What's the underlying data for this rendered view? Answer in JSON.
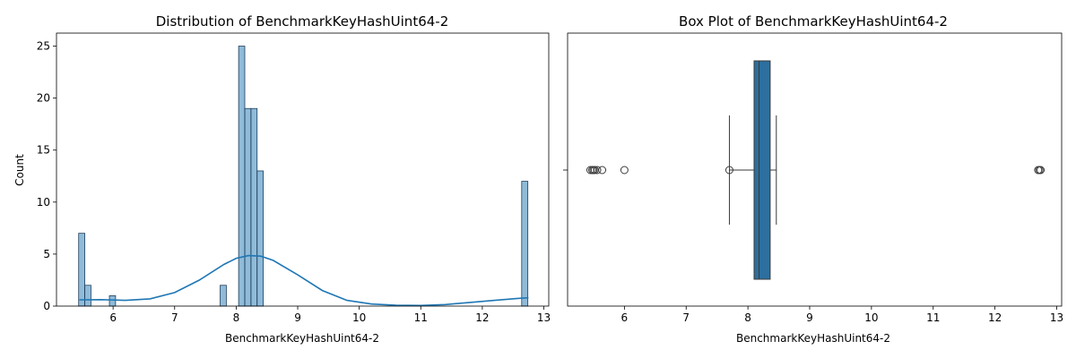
{
  "chart_data": [
    {
      "type": "histogram",
      "title": "Distribution of BenchmarkKeyHashUint64-2",
      "xlabel": "BenchmarkKeyHashUint64-2",
      "ylabel": "Count",
      "xlim": [
        5.08,
        13.08
      ],
      "ylim": [
        0,
        26.25
      ],
      "xticks": [
        6,
        7,
        8,
        9,
        10,
        11,
        12,
        13
      ],
      "yticks": [
        0,
        5,
        10,
        15,
        20,
        25
      ],
      "bin_width": 0.1,
      "bars": [
        {
          "x0": 5.44,
          "count": 7
        },
        {
          "x0": 5.54,
          "count": 2
        },
        {
          "x0": 5.94,
          "count": 1
        },
        {
          "x0": 7.74,
          "count": 2
        },
        {
          "x0": 8.04,
          "count": 25
        },
        {
          "x0": 8.14,
          "count": 19
        },
        {
          "x0": 8.24,
          "count": 19
        },
        {
          "x0": 8.34,
          "count": 13
        },
        {
          "x0": 12.64,
          "count": 12
        }
      ],
      "kde": {
        "x": [
          5.45,
          5.8,
          6.2,
          6.6,
          7.0,
          7.4,
          7.8,
          8.0,
          8.2,
          8.4,
          8.6,
          9.0,
          9.4,
          9.8,
          10.2,
          10.6,
          11.0,
          11.4,
          11.8,
          12.2,
          12.6,
          12.75
        ],
        "y": [
          0.6,
          0.62,
          0.55,
          0.7,
          1.3,
          2.5,
          4.0,
          4.6,
          4.85,
          4.8,
          4.4,
          3.0,
          1.5,
          0.55,
          0.2,
          0.08,
          0.06,
          0.15,
          0.35,
          0.55,
          0.75,
          0.8
        ]
      },
      "colors": {
        "bar": "#1f77b4",
        "kde": "#1f77b4"
      }
    },
    {
      "type": "box",
      "title": "Box Plot of BenchmarkKeyHashUint64-2",
      "xlabel": "BenchmarkKeyHashUint64-2",
      "xlim": [
        5.08,
        13.08
      ],
      "xticks": [
        6,
        7,
        8,
        9,
        10,
        11,
        12,
        13
      ],
      "q1": 8.1,
      "median": 8.18,
      "q3": 8.36,
      "whisker_low": 7.7,
      "whisker_high": 8.46,
      "outliers": [
        5.45,
        5.48,
        5.5,
        5.52,
        5.56,
        5.64,
        6.0,
        7.7,
        12.7,
        12.72,
        12.74
      ],
      "colors": {
        "box": "#2d6f9e"
      }
    }
  ]
}
